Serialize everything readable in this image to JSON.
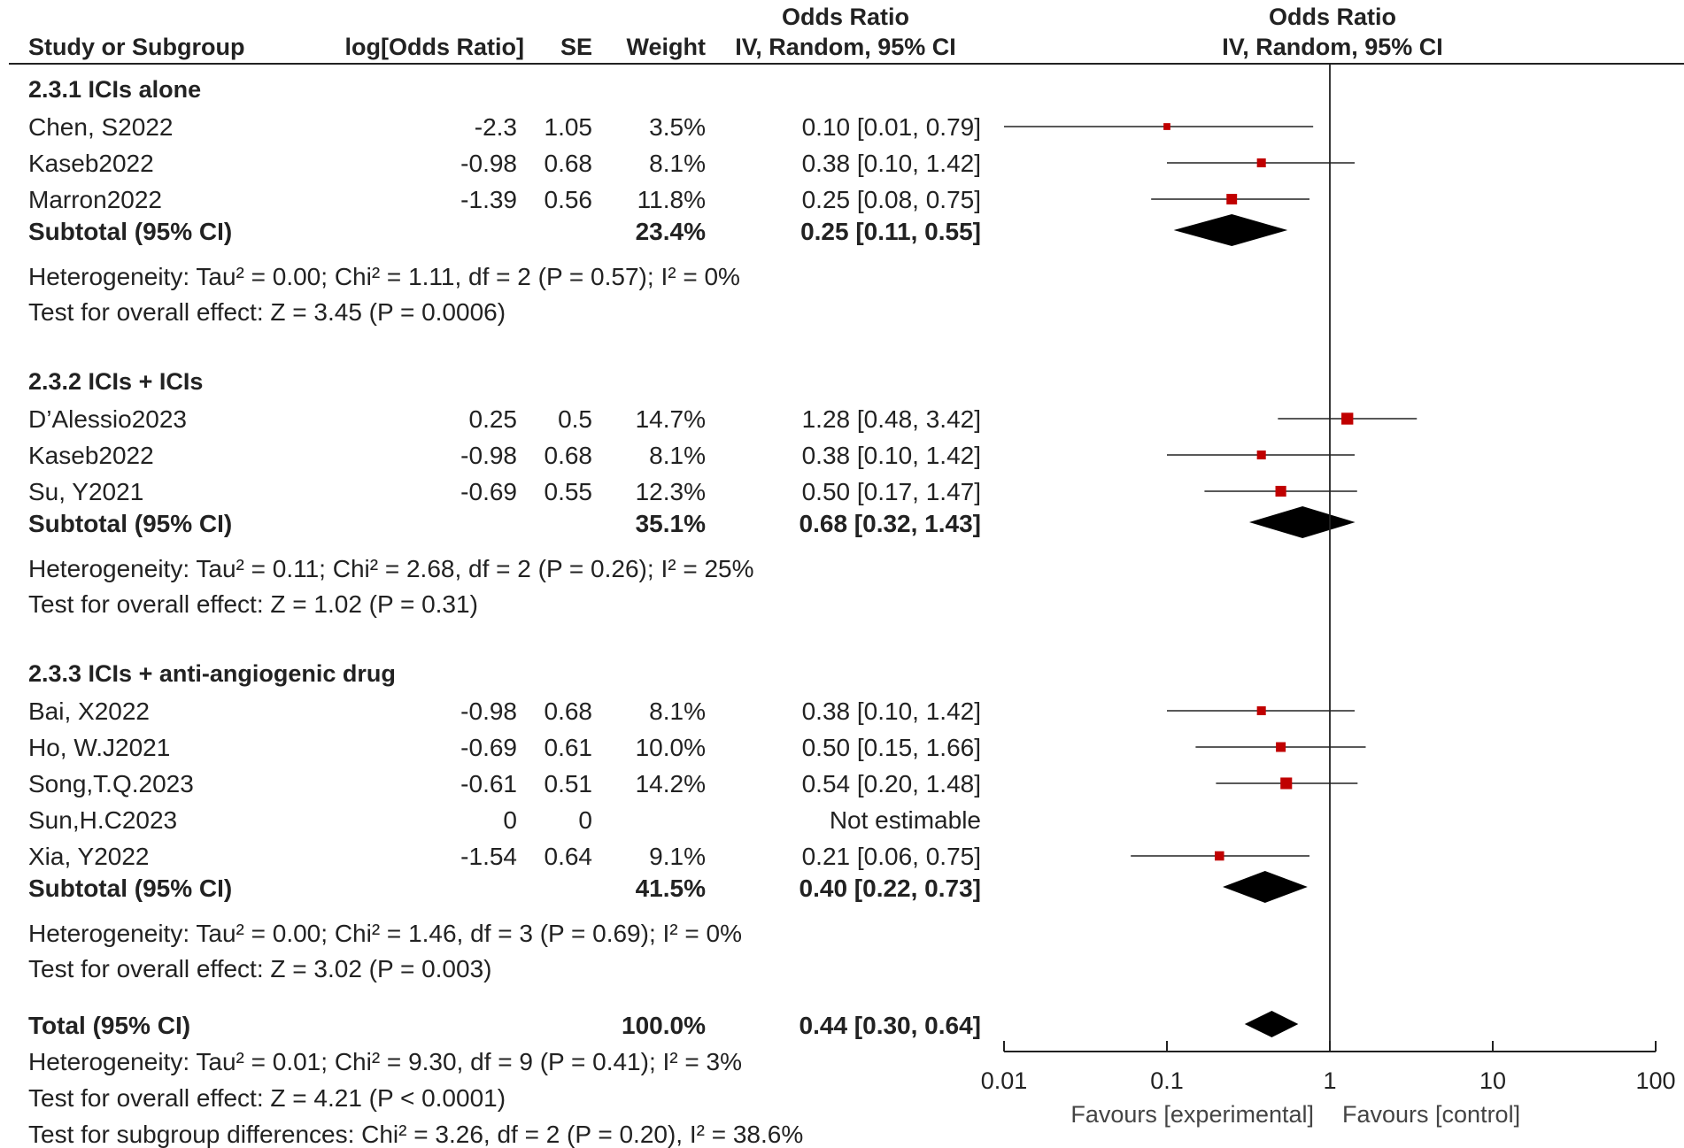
{
  "header": {
    "col_study": "Study or Subgroup",
    "col_log": "log[Odds Ratio]",
    "col_se": "SE",
    "col_weight": "Weight",
    "col_or_title": "Odds Ratio",
    "col_or_method": "IV, Random, 95% CI",
    "plot_title": "Odds Ratio",
    "plot_method": "IV, Random, 95% CI"
  },
  "chart_data": {
    "type": "forest",
    "x_scale": "log",
    "xlim": [
      0.01,
      100
    ],
    "x_ticks": [
      "0.01",
      "0.1",
      "1",
      "10",
      "100"
    ],
    "reference_line": 1,
    "favours_left": "Favours [experimental]",
    "favours_right": "Favours [control]",
    "square_color": "#c00000",
    "groups": [
      {
        "name": "2.3.1 ICIs alone",
        "studies": [
          {
            "study": "Chen, S2022",
            "log_or": "-2.3",
            "se": "1.05",
            "weight": "3.5%",
            "ci_text": "0.10 [0.01, 0.79]",
            "or": 0.1,
            "lo": 0.01,
            "hi": 0.79
          },
          {
            "study": "Kaseb2022",
            "log_or": "-0.98",
            "se": "0.68",
            "weight": "8.1%",
            "ci_text": "0.38 [0.10, 1.42]",
            "or": 0.38,
            "lo": 0.1,
            "hi": 1.42
          },
          {
            "study": "Marron2022",
            "log_or": "-1.39",
            "se": "0.56",
            "weight": "11.8%",
            "ci_text": "0.25 [0.08, 0.75]",
            "or": 0.25,
            "lo": 0.08,
            "hi": 0.75
          }
        ],
        "subtotal": {
          "label": "Subtotal (95% CI)",
          "weight": "23.4%",
          "ci_text": "0.25 [0.11, 0.55]",
          "or": 0.25,
          "lo": 0.11,
          "hi": 0.55
        },
        "heterogeneity": "Heterogeneity: Tau² = 0.00; Chi² = 1.11, df = 2 (P = 0.57); I² = 0%",
        "overall": "Test for overall effect: Z = 3.45 (P = 0.0006)"
      },
      {
        "name": "2.3.2 ICIs + ICIs",
        "studies": [
          {
            "study": "D’Alessio2023",
            "log_or": "0.25",
            "se": "0.5",
            "weight": "14.7%",
            "ci_text": "1.28 [0.48, 3.42]",
            "or": 1.28,
            "lo": 0.48,
            "hi": 3.42
          },
          {
            "study": "Kaseb2022",
            "log_or": "-0.98",
            "se": "0.68",
            "weight": "8.1%",
            "ci_text": "0.38 [0.10, 1.42]",
            "or": 0.38,
            "lo": 0.1,
            "hi": 1.42
          },
          {
            "study": "Su, Y2021",
            "log_or": "-0.69",
            "se": "0.55",
            "weight": "12.3%",
            "ci_text": "0.50 [0.17, 1.47]",
            "or": 0.5,
            "lo": 0.17,
            "hi": 1.47
          }
        ],
        "subtotal": {
          "label": "Subtotal (95% CI)",
          "weight": "35.1%",
          "ci_text": "0.68 [0.32, 1.43]",
          "or": 0.68,
          "lo": 0.32,
          "hi": 1.43
        },
        "heterogeneity": "Heterogeneity: Tau² = 0.11; Chi² = 2.68, df = 2 (P = 0.26); I² = 25%",
        "overall": "Test for overall effect: Z = 1.02 (P = 0.31)"
      },
      {
        "name": "2.3.3 ICIs + anti-angiogenic drug",
        "studies": [
          {
            "study": "Bai, X2022",
            "log_or": "-0.98",
            "se": "0.68",
            "weight": "8.1%",
            "ci_text": "0.38 [0.10, 1.42]",
            "or": 0.38,
            "lo": 0.1,
            "hi": 1.42
          },
          {
            "study": "Ho, W.J2021",
            "log_or": "-0.69",
            "se": "0.61",
            "weight": "10.0%",
            "ci_text": "0.50 [0.15, 1.66]",
            "or": 0.5,
            "lo": 0.15,
            "hi": 1.66
          },
          {
            "study": "Song,T.Q.2023",
            "log_or": "-0.61",
            "se": "0.51",
            "weight": "14.2%",
            "ci_text": "0.54 [0.20, 1.48]",
            "or": 0.54,
            "lo": 0.2,
            "hi": 1.48
          },
          {
            "study": "Sun,H.C2023",
            "log_or": "0",
            "se": "0",
            "weight": "",
            "ci_text": "Not estimable",
            "or": null,
            "lo": null,
            "hi": null
          },
          {
            "study": "Xia, Y2022",
            "log_or": "-1.54",
            "se": "0.64",
            "weight": "9.1%",
            "ci_text": "0.21 [0.06, 0.75]",
            "or": 0.21,
            "lo": 0.06,
            "hi": 0.75
          }
        ],
        "subtotal": {
          "label": "Subtotal (95% CI)",
          "weight": "41.5%",
          "ci_text": "0.40 [0.22, 0.73]",
          "or": 0.4,
          "lo": 0.22,
          "hi": 0.73
        },
        "heterogeneity": "Heterogeneity: Tau² = 0.00; Chi² = 1.46, df = 3 (P = 0.69); I² = 0%",
        "overall": "Test for overall effect: Z = 3.02 (P = 0.003)"
      }
    ],
    "total": {
      "label": "Total (95% CI)",
      "weight": "100.0%",
      "ci_text": "0.44 [0.30, 0.64]",
      "or": 0.44,
      "lo": 0.3,
      "hi": 0.64,
      "heterogeneity": "Heterogeneity: Tau² = 0.01; Chi² = 9.30, df = 9 (P = 0.41); I² = 3%",
      "overall": "Test for overall effect: Z = 4.21 (P < 0.0001)",
      "subgroup": "Test for subgroup differences: Chi² = 3.26, df = 2 (P = 0.20), I² = 38.6%"
    }
  }
}
